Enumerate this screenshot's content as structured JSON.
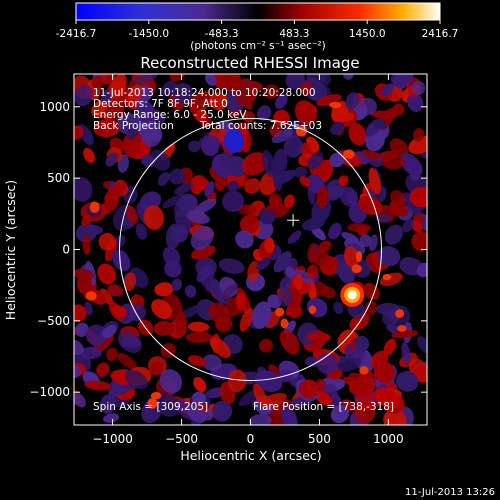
{
  "colorbar": {
    "ticks": [
      "-2416.7",
      "-1450.0",
      "-483.3",
      "483.3",
      "1450.0",
      "2416.7"
    ],
    "unit_line": "(photons cm⁻² s⁻¹ asec⁻²)",
    "range": [
      -2416.7,
      2416.7
    ],
    "colors": [
      "#0000ff",
      "#4b2a8f",
      "#000000",
      "#b00000",
      "#ff2a00",
      "#ffd400",
      "#ffffff"
    ]
  },
  "chart_data": {
    "type": "heatmap",
    "title": "Reconstructed RHESSI Image",
    "xlabel": "Heliocentric X (arcsec)",
    "ylabel": "Heliocentric Y (arcsec)",
    "xlim": [
      -1280,
      1280
    ],
    "ylim": [
      -1230,
      1230
    ],
    "xticks": [
      -1000,
      -500,
      0,
      500,
      1000
    ],
    "yticks": [
      -1000,
      -500,
      0,
      500,
      1000
    ],
    "xtick_labels": [
      "−1000",
      "−500",
      "0",
      "500",
      "1000"
    ],
    "ytick_labels": [
      "−1000",
      "−500",
      "0",
      "500",
      "1000"
    ],
    "solar_limb_radius_arcsec": 950,
    "sun_center": [
      0,
      0
    ],
    "cross_marker": [
      309,
      205
    ],
    "peak_source": {
      "x": 738,
      "y": -318,
      "value": 2416.7
    },
    "annotations": [
      "11-Jul-2013 10:18:24.000 to 10:20:28.000",
      "Detectors: 7F 8F 9F, Att 0",
      "Energy Range: 6.0 - 25.0 keV",
      "Back Projection",
      "Total counts: 7.62E+03"
    ],
    "footer_left": "Spin Axis = [309,205]",
    "footer_right": "Flare Position = [738,-318]"
  },
  "timestamp": "11-Jul-2013 13:26"
}
